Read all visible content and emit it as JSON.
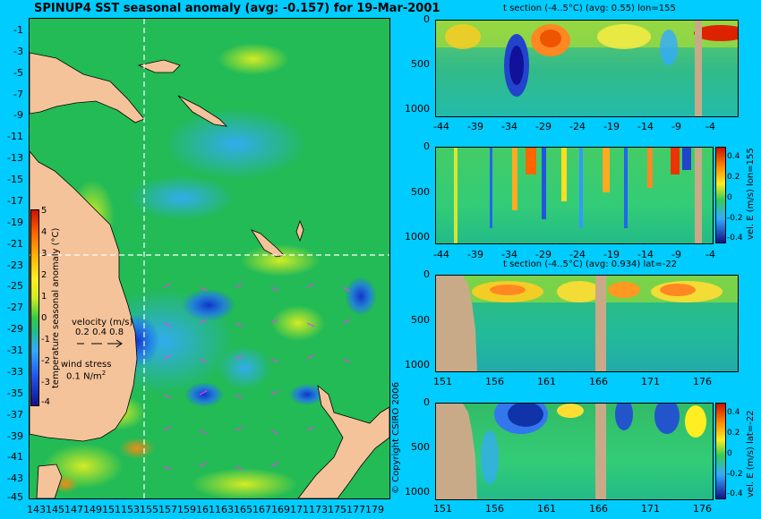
{
  "map": {
    "title": "SPINUP4 SST seasonal anomaly (avg: -0.157) for 19-Mar-2001",
    "lat_labels": [
      "-1",
      "-3",
      "-5",
      "-7",
      "-9",
      "-11",
      "-13",
      "-15",
      "-17",
      "-19",
      "-21",
      "-23",
      "-25",
      "-27",
      "-29",
      "-31",
      "-33",
      "-35",
      "-37",
      "-39",
      "-41",
      "-43",
      "-45"
    ],
    "lon_labels": [
      "143",
      "145",
      "147",
      "149",
      "151",
      "153",
      "155",
      "157",
      "159",
      "161",
      "163",
      "165",
      "167",
      "169",
      "171",
      "173",
      "175",
      "177",
      "179"
    ],
    "colorbar": {
      "label": "temperature seasonal anomaly (°C)",
      "ticks": [
        "5",
        "4",
        "3",
        "2",
        "1",
        "0",
        "-1",
        "-2",
        "-3",
        "-4"
      ]
    },
    "velocity_legend": {
      "title": "velocity (m/s)",
      "values": "0.2 0.4 0.8"
    },
    "wind_legend": {
      "title": "wind stress",
      "value": "0.1 N/m",
      "sup": "2"
    },
    "crosshair": {
      "lon": 155,
      "lat": -22
    }
  },
  "copyright": "© Copyright CSIRO 2006",
  "panels": [
    {
      "title": "t section (-4..5°C) (avg: 0.55) lon=155",
      "x_labels": [
        "-44",
        "-39",
        "-34",
        "-29",
        "-24",
        "-19",
        "-14",
        "-9",
        "-4"
      ],
      "y_labels": [
        "0",
        "500",
        "1000"
      ],
      "colorbar": null
    },
    {
      "title": "",
      "x_labels": [
        "-44",
        "-39",
        "-34",
        "-29",
        "-24",
        "-19",
        "-14",
        "-9",
        "-4"
      ],
      "y_labels": [
        "0",
        "500",
        "1000"
      ],
      "colorbar": {
        "label": "vel. E (m/s) lon=155",
        "ticks": [
          "0.4",
          "0.2",
          "0",
          "-0.2",
          "-0.4"
        ]
      }
    },
    {
      "title": "t section (-4..5°C) (avg: 0.934) lat=-22",
      "x_labels": [
        "151",
        "156",
        "161",
        "166",
        "171",
        "176"
      ],
      "y_labels": [
        "0",
        "500",
        "1000"
      ],
      "colorbar": null
    },
    {
      "title": "",
      "x_labels": [
        "151",
        "156",
        "161",
        "166",
        "171",
        "176"
      ],
      "y_labels": [
        "0",
        "500",
        "1000"
      ],
      "colorbar": {
        "label": "vel. E (m/s) lat=-22",
        "ticks": [
          "0.4",
          "0.2",
          "0",
          "-0.2",
          "-0.4"
        ]
      }
    }
  ],
  "colors": {
    "background": "#00ccff",
    "land": "#f5c39a",
    "section_land": "#c8aa88",
    "sea_base": "#22bb55",
    "crosshair": "#ffffff"
  }
}
